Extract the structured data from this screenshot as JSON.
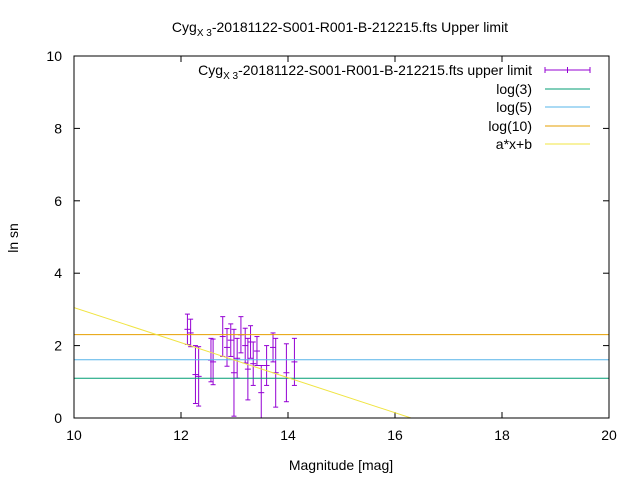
{
  "chart_data": {
    "type": "scatter",
    "title": {
      "prefix": "Cyg",
      "subscript": "X 3",
      "suffix": "-20181122-S001-R001-B-212215.fts Upper limit"
    },
    "xlabel": "Magnitude [mag]",
    "ylabel": "ln sn",
    "xlim": [
      10,
      20
    ],
    "ylim": [
      0,
      10
    ],
    "xticks": [
      "10",
      "12",
      "14",
      "16",
      "18",
      "20"
    ],
    "yticks": [
      "0",
      "2",
      "4",
      "6",
      "8",
      "10"
    ],
    "grid": false,
    "legend_position": "top-right",
    "series": [
      {
        "name": {
          "prefix": "Cyg",
          "subscript": "X 3",
          "suffix": "-20181122-S001-R001-B-212215.fts upper limit"
        },
        "kind": "errorbar",
        "color": "#9400d3",
        "points": [
          {
            "x": 12.12,
            "y": 2.45,
            "err": 0.42
          },
          {
            "x": 12.18,
            "y": 2.35,
            "err": 0.38
          },
          {
            "x": 12.27,
            "y": 1.2,
            "err": 0.8
          },
          {
            "x": 12.33,
            "y": 1.15,
            "err": 0.82
          },
          {
            "x": 12.56,
            "y": 1.6,
            "err": 0.6
          },
          {
            "x": 12.6,
            "y": 1.55,
            "err": 0.63
          },
          {
            "x": 12.78,
            "y": 2.25,
            "err": 0.55
          },
          {
            "x": 12.86,
            "y": 1.95,
            "err": 0.52
          },
          {
            "x": 12.93,
            "y": 2.15,
            "err": 0.45
          },
          {
            "x": 12.99,
            "y": 1.25,
            "err": 1.2
          },
          {
            "x": 13.05,
            "y": 1.65,
            "err": 0.55
          },
          {
            "x": 13.12,
            "y": 2.3,
            "err": 0.5
          },
          {
            "x": 13.2,
            "y": 2.0,
            "err": 0.48
          },
          {
            "x": 13.25,
            "y": 1.35,
            "err": 0.85
          },
          {
            "x": 13.3,
            "y": 2.1,
            "err": 0.45
          },
          {
            "x": 13.35,
            "y": 1.5,
            "err": 0.6
          },
          {
            "x": 13.42,
            "y": 1.85,
            "err": 0.4
          },
          {
            "x": 13.5,
            "y": 0.7,
            "err": 0.75
          },
          {
            "x": 13.6,
            "y": 1.45,
            "err": 0.55
          },
          {
            "x": 13.72,
            "y": 1.95,
            "err": 0.4
          },
          {
            "x": 13.77,
            "y": 1.25,
            "err": 0.95
          },
          {
            "x": 13.97,
            "y": 1.25,
            "err": 0.8
          },
          {
            "x": 14.12,
            "y": 1.55,
            "err": 0.65
          }
        ]
      },
      {
        "name": "log(3)",
        "kind": "hline",
        "y": 1.0986,
        "color": "#009e73"
      },
      {
        "name": "log(5)",
        "kind": "hline",
        "y": 1.6094,
        "color": "#56b4e9"
      },
      {
        "name": "log(10)",
        "kind": "hline",
        "y": 2.3026,
        "color": "#e69f00"
      },
      {
        "name": "a*x+b",
        "kind": "line",
        "color": "#f0e442",
        "x": [
          10,
          16.3
        ],
        "y": [
          3.05,
          0
        ]
      }
    ]
  }
}
